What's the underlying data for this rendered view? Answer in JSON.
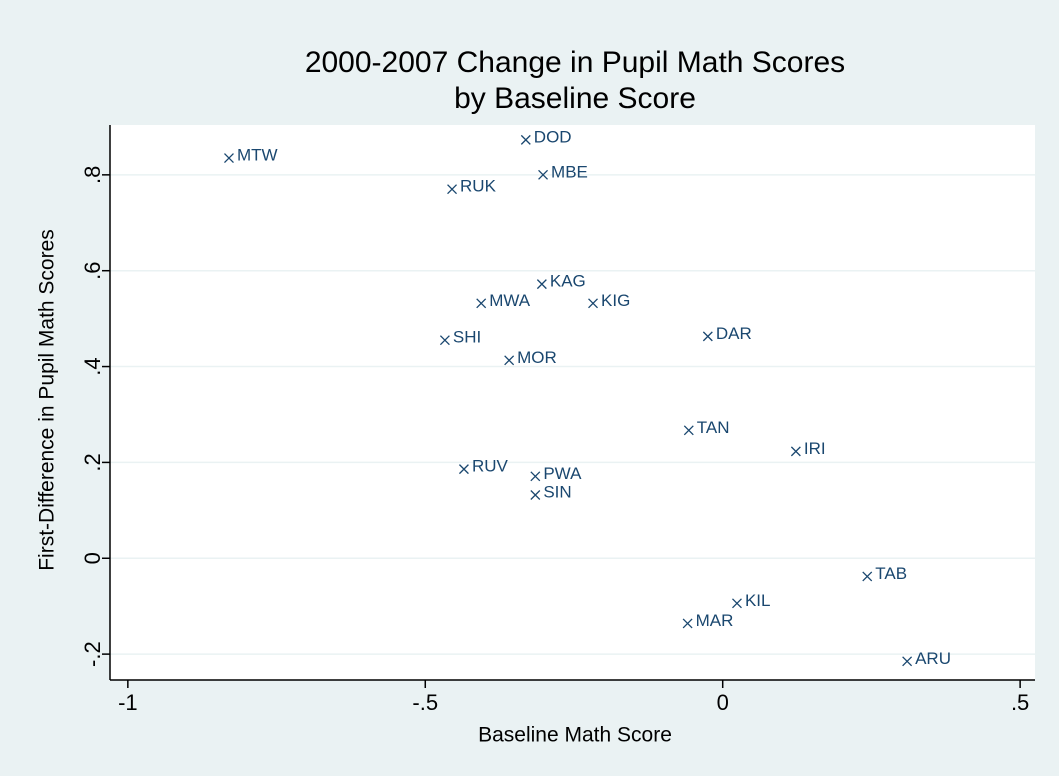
{
  "chart_data": {
    "type": "scatter",
    "title": [
      "2000-2007 Change in Pupil Math Scores",
      "by Baseline Score"
    ],
    "x_label": "Baseline Math Score",
    "y_label": "First-Difference in Pupil Math Scores",
    "labels": [
      "MTW",
      "DOD",
      "MBE",
      "RUK",
      "KAG",
      "MWA",
      "KIG",
      "SHI",
      "DAR",
      "MOR",
      "TAN",
      "IRI",
      "RUV",
      "PWA",
      "SIN",
      "TAB",
      "KIL",
      "MAR",
      "ARU"
    ],
    "x": [
      -0.83,
      -0.331,
      -0.302,
      -0.455,
      -0.304,
      -0.406,
      -0.218,
      -0.467,
      -0.025,
      -0.359,
      -0.057,
      0.123,
      -0.435,
      -0.315,
      -0.315,
      0.243,
      0.024,
      -0.059,
      0.31
    ],
    "values": [
      0.835,
      0.873,
      0.8,
      0.77,
      0.572,
      0.532,
      0.532,
      0.455,
      0.463,
      0.413,
      0.267,
      0.223,
      0.186,
      0.171,
      0.132,
      -0.038,
      -0.094,
      -0.136,
      -0.215
    ],
    "color": "#1a476f",
    "xlim": [
      -1.03,
      0.525
    ],
    "ylim": [
      -0.254,
      0.904
    ],
    "xticks": [
      {
        "value": -1,
        "label": "-1"
      },
      {
        "value": -0.5,
        "label": "-.5"
      },
      0,
      {
        "value": 0.5,
        "label": ".5"
      }
    ],
    "yticks": [
      {
        "value": -0.2,
        "label": "-.2"
      },
      0,
      {
        "value": 0.2,
        "label": ".2"
      },
      {
        "value": 0.4,
        "label": ".4"
      },
      {
        "value": 0.6,
        "label": ".6"
      },
      {
        "value": 0.8,
        "label": ".8"
      }
    ],
    "grid": true
  }
}
